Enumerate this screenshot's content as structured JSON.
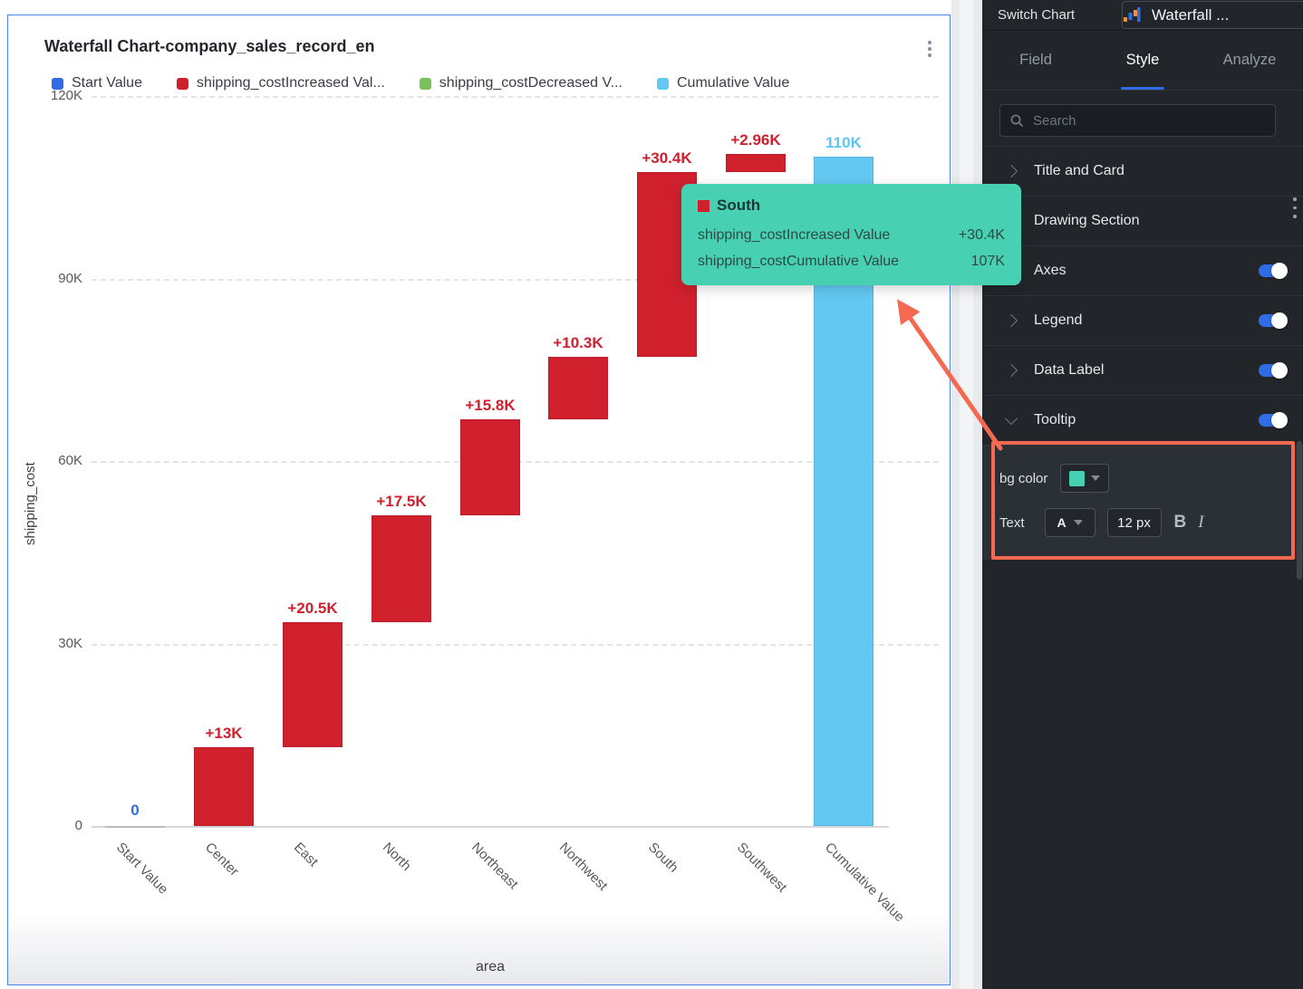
{
  "card": {
    "title": "Waterfall Chart-company_sales_record_en",
    "legend": [
      {
        "label": "Start Value",
        "color": "#2f6ce5"
      },
      {
        "label": "shipping_costIncreased Val...",
        "color": "#d0202e"
      },
      {
        "label": "shipping_costDecreased V...",
        "color": "#7bbf5a"
      },
      {
        "label": "Cumulative Value",
        "color": "#63c9f2"
      }
    ],
    "y_axis_title": "shipping_cost",
    "x_axis_title": "area"
  },
  "chart_data": {
    "type": "bar",
    "subtype": "waterfall",
    "title": "Waterfall Chart-company_sales_record_en",
    "xlabel": "area",
    "ylabel": "shipping_cost",
    "ylim": [
      0,
      120000
    ],
    "y_ticks": [
      {
        "label": "120K",
        "value": 120000
      },
      {
        "label": "90K",
        "value": 90000
      },
      {
        "label": "60K",
        "value": 60000
      },
      {
        "label": "30K",
        "value": 30000
      },
      {
        "label": "0",
        "value": 0
      }
    ],
    "categories": [
      "Start Value",
      "Center",
      "East",
      "North",
      "Northeast",
      "Northwest",
      "South",
      "Southwest",
      "Cumulative Value"
    ],
    "bars": [
      {
        "category": "Start Value",
        "kind": "start",
        "from": 0,
        "to": 0,
        "label": "0"
      },
      {
        "category": "Center",
        "kind": "increase",
        "from": 0,
        "to": 13000,
        "label": "+13K"
      },
      {
        "category": "East",
        "kind": "increase",
        "from": 13000,
        "to": 33500,
        "label": "+20.5K"
      },
      {
        "category": "North",
        "kind": "increase",
        "from": 33500,
        "to": 51000,
        "label": "+17.5K"
      },
      {
        "category": "Northeast",
        "kind": "increase",
        "from": 51000,
        "to": 66800,
        "label": "+15.8K"
      },
      {
        "category": "Northwest",
        "kind": "increase",
        "from": 66800,
        "to": 77100,
        "label": "+10.3K"
      },
      {
        "category": "South",
        "kind": "increase",
        "from": 77100,
        "to": 107500,
        "label": "+30.4K"
      },
      {
        "category": "Southwest",
        "kind": "increase",
        "from": 107500,
        "to": 110460,
        "label": "+2.96K"
      },
      {
        "category": "Cumulative Value",
        "kind": "cumulative",
        "from": 0,
        "to": 110000,
        "label": "110K"
      }
    ],
    "colors": {
      "increase": "#d0202e",
      "decrease": "#7bbf5a",
      "cumulative": "#63c9f2",
      "start_line": "#b9bcbf",
      "start_label": "#2f6ce5",
      "cumulative_label": "#5bc6f0"
    },
    "legend_position": "top"
  },
  "tooltip": {
    "bg_color": "#47d0b2",
    "series_color": "#d0202e",
    "title": "South",
    "rows": [
      {
        "label": "shipping_costIncreased Value",
        "value": "+30.4K"
      },
      {
        "label": "shipping_costCumulative Value",
        "value": "107K"
      }
    ]
  },
  "panel": {
    "switch_chart_label": "Switch Chart",
    "chart_type": {
      "value": "Waterfall ...",
      "icon": "waterfall-mini-icon"
    },
    "tabs": [
      {
        "label": "Field",
        "active": false
      },
      {
        "label": "Style",
        "active": true
      },
      {
        "label": "Analyze",
        "active": false
      }
    ],
    "search_placeholder": "Search",
    "sections": [
      {
        "label": "Title and Card",
        "chevron": "right",
        "toggle": false
      },
      {
        "label": "Drawing Section",
        "chevron": "right",
        "toggle": false
      },
      {
        "label": "Axes",
        "chevron": "right",
        "toggle": true
      },
      {
        "label": "Legend",
        "chevron": "right",
        "toggle": true
      },
      {
        "label": "Data Label",
        "chevron": "right",
        "toggle": true
      },
      {
        "label": "Tooltip",
        "chevron": "down",
        "toggle": true
      }
    ],
    "tooltip_settings": {
      "bg_color_label": "bg color",
      "bg_color_value": "#47d0b2",
      "text_label": "Text",
      "text_color_button": "A",
      "font_size_value": "12 px",
      "bold_label": "B",
      "italic_label": "I"
    },
    "accent_color": "#2f6ce5"
  },
  "annotation": {
    "color": "#f4694f"
  }
}
